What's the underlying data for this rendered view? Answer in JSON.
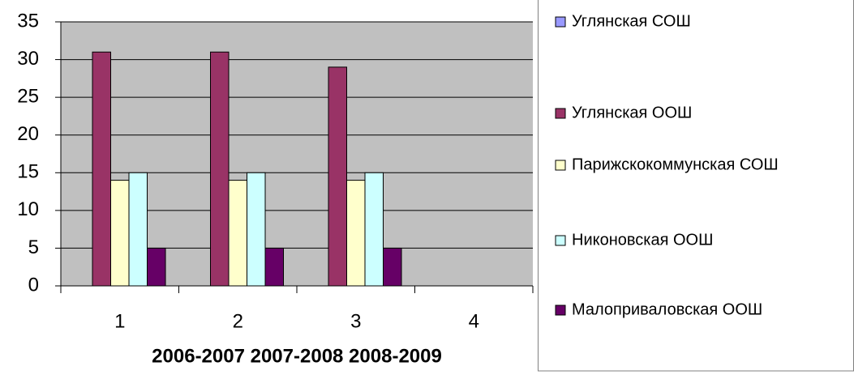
{
  "chart_data": {
    "type": "bar",
    "x_label": "2006-2007 2007-2008 2008-2009",
    "categories": [
      "1",
      "2",
      "3",
      "4"
    ],
    "series": [
      {
        "name": "Углянская СОШ",
        "color": "#9999ff",
        "values": [
          0,
          0,
          0,
          null
        ]
      },
      {
        "name": "Углянская ООШ",
        "color": "#993366",
        "values": [
          31,
          31,
          29,
          null
        ]
      },
      {
        "name": "Парижскокоммунская СОШ",
        "color": "#ffffcc",
        "values": [
          14,
          14,
          14,
          null
        ]
      },
      {
        "name": "Никоновская ООШ",
        "color": "#ccffff",
        "values": [
          15,
          15,
          15,
          null
        ]
      },
      {
        "name": "Малоприваловская ООШ",
        "color": "#660066",
        "values": [
          5,
          5,
          5,
          null
        ]
      }
    ],
    "ylim": [
      0,
      35
    ],
    "yticks": [
      0,
      5,
      10,
      15,
      20,
      25,
      30,
      35
    ],
    "grid": true,
    "legend": "right"
  }
}
